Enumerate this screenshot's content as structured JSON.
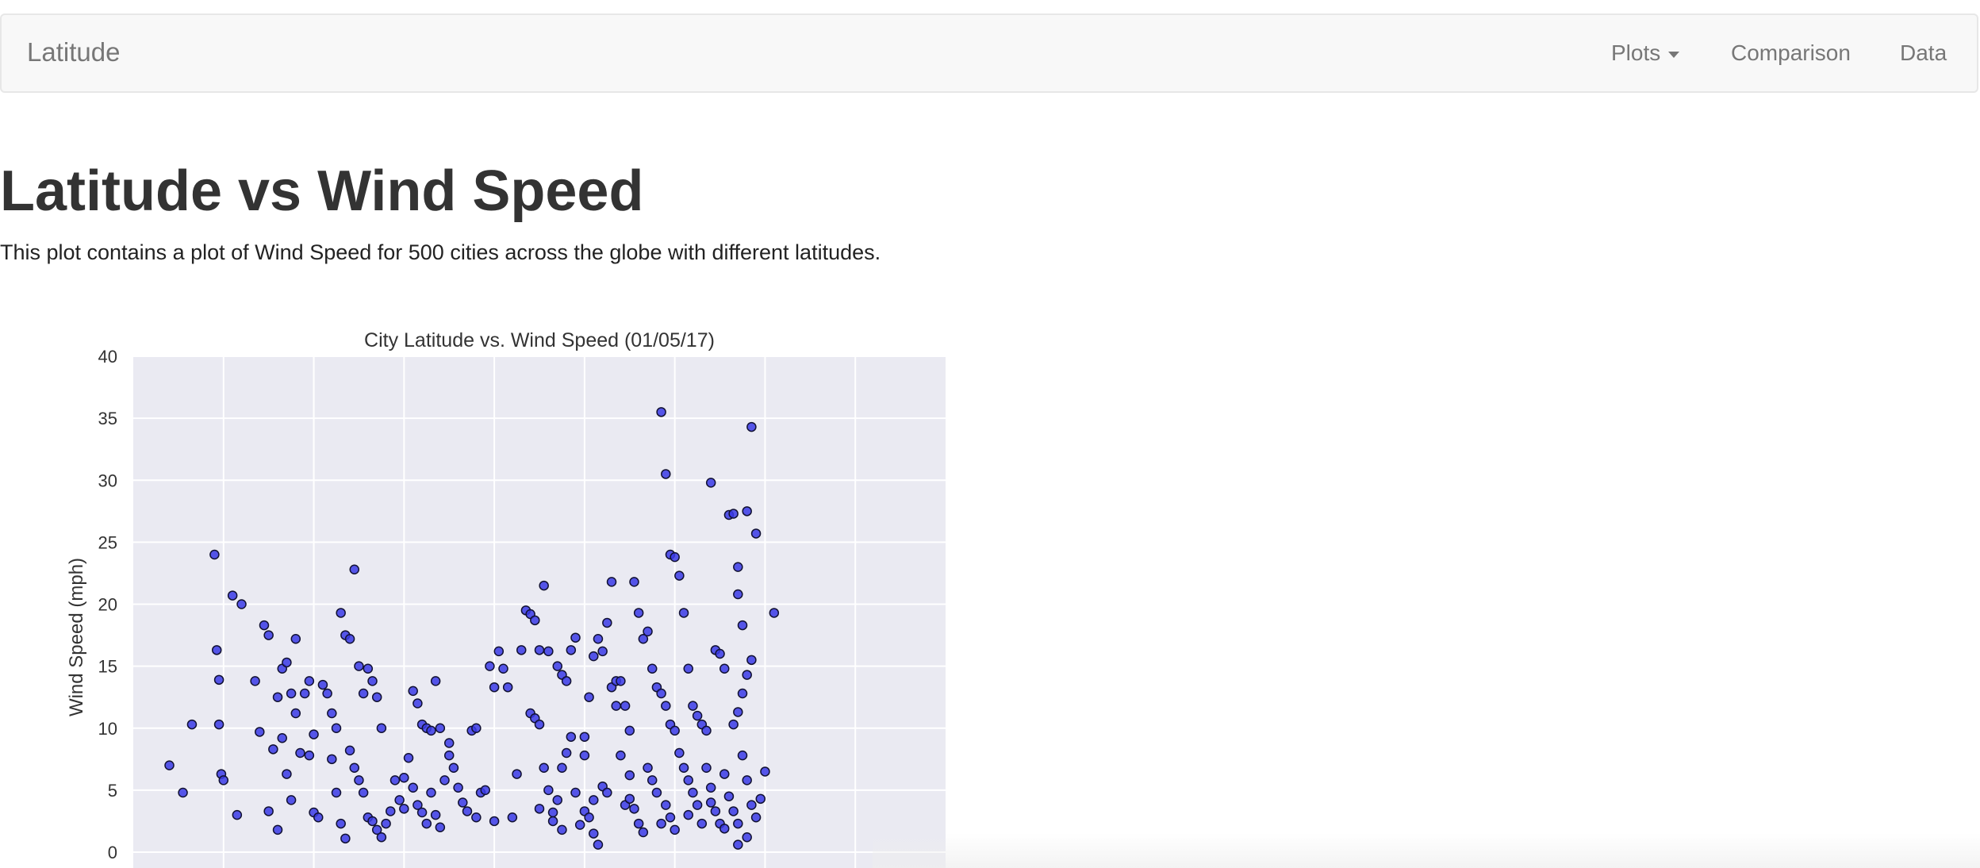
{
  "navbar": {
    "brand": "Latitude",
    "items": [
      {
        "label": "Plots",
        "dropdown": true
      },
      {
        "label": "Comparison"
      },
      {
        "label": "Data"
      }
    ]
  },
  "page": {
    "title": "Latitude vs Wind Speed",
    "description": "This plot contains a plot of Wind Speed for 500 cities across the globe with different latitudes."
  },
  "colors": {
    "plot_background": "#eaeaf2",
    "gridline": "#ffffff",
    "marker_fill": "#3a3ae6",
    "marker_edge": "#111133",
    "navbar_bg": "#f8f8f8",
    "navbar_text": "#777777"
  },
  "chart_data": {
    "type": "scatter",
    "title": "City Latitude vs. Wind Speed (01/05/17)",
    "xlabel": "",
    "ylabel": "Wind Speed (mph)",
    "ylim": [
      0,
      40
    ],
    "yticks": [
      "0",
      "5",
      "10",
      "15",
      "20",
      "25",
      "30",
      "35",
      "40"
    ],
    "xlim": [
      -90,
      90
    ],
    "grid": true,
    "series": [
      {
        "points": [
          [
            -82,
            7
          ],
          [
            -79,
            4.8
          ],
          [
            -77,
            10.3
          ],
          [
            -72,
            24
          ],
          [
            -71.5,
            16.3
          ],
          [
            -71,
            10.3
          ],
          [
            -70.5,
            6.3
          ],
          [
            -70,
            5.8
          ],
          [
            -71,
            13.9
          ],
          [
            -68,
            20.7
          ],
          [
            -67,
            3
          ],
          [
            -66,
            20
          ],
          [
            -63,
            13.8
          ],
          [
            -62,
            9.7
          ],
          [
            -61,
            18.3
          ],
          [
            -60,
            17.5
          ],
          [
            -59,
            8.3
          ],
          [
            -58,
            12.5
          ],
          [
            -57,
            14.8
          ],
          [
            -56,
            15.3
          ],
          [
            -55,
            12.8
          ],
          [
            -54,
            17.2
          ],
          [
            -57,
            9.2
          ],
          [
            -56,
            6.3
          ],
          [
            -55,
            4.2
          ],
          [
            -54,
            11.2
          ],
          [
            -53,
            8
          ],
          [
            -52,
            12.8
          ],
          [
            -51,
            13.8
          ],
          [
            -51,
            7.8
          ],
          [
            -50,
            3.2
          ],
          [
            -49,
            2.8
          ],
          [
            -48,
            13.5
          ],
          [
            -47,
            12.8
          ],
          [
            -46,
            11.2
          ],
          [
            -45,
            10
          ],
          [
            -46,
            7.5
          ],
          [
            -45,
            4.8
          ],
          [
            -44,
            19.3
          ],
          [
            -43,
            17.5
          ],
          [
            -42,
            17.2
          ],
          [
            -41,
            22.8
          ],
          [
            -40,
            15
          ],
          [
            -39,
            12.8
          ],
          [
            -38,
            14.8
          ],
          [
            -37,
            13.8
          ],
          [
            -36,
            12.5
          ],
          [
            -35,
            10
          ],
          [
            -42,
            8.2
          ],
          [
            -41,
            6.8
          ],
          [
            -40,
            5.8
          ],
          [
            -39,
            4.8
          ],
          [
            -44,
            2.3
          ],
          [
            -43,
            1.1
          ],
          [
            -38,
            2.8
          ],
          [
            -37,
            2.5
          ],
          [
            -36,
            1.8
          ],
          [
            -35,
            1.2
          ],
          [
            -34,
            2.3
          ],
          [
            -33,
            3.3
          ],
          [
            -32,
            5.8
          ],
          [
            -31,
            4.2
          ],
          [
            -30,
            6
          ],
          [
            -29,
            7.6
          ],
          [
            -28,
            13
          ],
          [
            -27,
            12
          ],
          [
            -26,
            10.3
          ],
          [
            -25,
            10
          ],
          [
            -24,
            9.8
          ],
          [
            -23,
            13.8
          ],
          [
            -22,
            10
          ],
          [
            -28,
            5.2
          ],
          [
            -27,
            3.8
          ],
          [
            -26,
            3.2
          ],
          [
            -25,
            2.3
          ],
          [
            -24,
            4.8
          ],
          [
            -23,
            3
          ],
          [
            -22,
            2
          ],
          [
            -21,
            5.8
          ],
          [
            -20,
            7.8
          ],
          [
            -19,
            6.8
          ],
          [
            -18,
            5.2
          ],
          [
            -17,
            4
          ],
          [
            -16,
            3.3
          ],
          [
            -15,
            9.8
          ],
          [
            -14,
            10
          ],
          [
            -13,
            4.8
          ],
          [
            -12,
            5
          ],
          [
            -11,
            15
          ],
          [
            -10,
            13.3
          ],
          [
            -9,
            16.2
          ],
          [
            -8,
            14.8
          ],
          [
            -7,
            13.3
          ],
          [
            -6,
            2.8
          ],
          [
            -5,
            6.3
          ],
          [
            -4,
            16.3
          ],
          [
            -3,
            19.5
          ],
          [
            -2,
            19.2
          ],
          [
            -1,
            18.7
          ],
          [
            0,
            16.3
          ],
          [
            1,
            21.5
          ],
          [
            2,
            16.2
          ],
          [
            -2,
            11.2
          ],
          [
            -1,
            10.8
          ],
          [
            0,
            10.3
          ],
          [
            1,
            6.8
          ],
          [
            2,
            5
          ],
          [
            3,
            3.2
          ],
          [
            4,
            15
          ],
          [
            5,
            14.3
          ],
          [
            6,
            13.8
          ],
          [
            7,
            16.3
          ],
          [
            8,
            17.3
          ],
          [
            3,
            2.5
          ],
          [
            4,
            4.2
          ],
          [
            5,
            6.8
          ],
          [
            6,
            8
          ],
          [
            7,
            9.3
          ],
          [
            8,
            4.8
          ],
          [
            9,
            2.2
          ],
          [
            10,
            7.8
          ],
          [
            11,
            12.5
          ],
          [
            12,
            15.8
          ],
          [
            13,
            17.2
          ],
          [
            14,
            16.2
          ],
          [
            15,
            18.5
          ],
          [
            16,
            13.3
          ],
          [
            17,
            11.8
          ],
          [
            18,
            7.8
          ],
          [
            19,
            3.8
          ],
          [
            10,
            3.3
          ],
          [
            11,
            2.8
          ],
          [
            12,
            1.5
          ],
          [
            13,
            0.6
          ],
          [
            14,
            5.3
          ],
          [
            15,
            4.8
          ],
          [
            16,
            21.8
          ],
          [
            17,
            13.8
          ],
          [
            18,
            13.8
          ],
          [
            19,
            11.8
          ],
          [
            20,
            9.8
          ],
          [
            21,
            21.8
          ],
          [
            22,
            19.3
          ],
          [
            23,
            17.2
          ],
          [
            20,
            4.3
          ],
          [
            21,
            3.5
          ],
          [
            22,
            2.3
          ],
          [
            23,
            1.6
          ],
          [
            24,
            17.8
          ],
          [
            25,
            14.8
          ],
          [
            26,
            13.3
          ],
          [
            27,
            35.5
          ],
          [
            28,
            30.5
          ],
          [
            29,
            24
          ],
          [
            30,
            23.8
          ],
          [
            31,
            22.3
          ],
          [
            27,
            12.8
          ],
          [
            28,
            11.8
          ],
          [
            29,
            10.3
          ],
          [
            30,
            9.8
          ],
          [
            31,
            8
          ],
          [
            24,
            6.8
          ],
          [
            25,
            5.8
          ],
          [
            26,
            4.8
          ],
          [
            27,
            2.3
          ],
          [
            28,
            3.8
          ],
          [
            29,
            2.8
          ],
          [
            30,
            1.8
          ],
          [
            32,
            19.3
          ],
          [
            33,
            14.8
          ],
          [
            34,
            11.8
          ],
          [
            35,
            11
          ],
          [
            36,
            10.3
          ],
          [
            37,
            9.8
          ],
          [
            38,
            29.8
          ],
          [
            39,
            16.3
          ],
          [
            40,
            16
          ],
          [
            41,
            14.8
          ],
          [
            42,
            27.2
          ],
          [
            43,
            27.3
          ],
          [
            44,
            23
          ],
          [
            44,
            20.8
          ],
          [
            45,
            18.3
          ],
          [
            46,
            27.5
          ],
          [
            47,
            34.3
          ],
          [
            48,
            25.7
          ],
          [
            52,
            19.3
          ],
          [
            47,
            15.5
          ],
          [
            46,
            14.3
          ],
          [
            45,
            12.8
          ],
          [
            44,
            11.3
          ],
          [
            43,
            10.3
          ],
          [
            32,
            6.8
          ],
          [
            33,
            5.8
          ],
          [
            34,
            4.8
          ],
          [
            35,
            3.8
          ],
          [
            36,
            2.3
          ],
          [
            37,
            6.8
          ],
          [
            38,
            5.2
          ],
          [
            39,
            3.3
          ],
          [
            40,
            2.3
          ],
          [
            41,
            6.3
          ],
          [
            42,
            4.5
          ],
          [
            43,
            3.3
          ],
          [
            44,
            2.3
          ],
          [
            45,
            7.8
          ],
          [
            46,
            5.8
          ],
          [
            47,
            3.8
          ],
          [
            48,
            2.8
          ],
          [
            49,
            4.3
          ],
          [
            50,
            6.5
          ],
          [
            46,
            1.2
          ],
          [
            44,
            0.6
          ],
          [
            -50,
            9.5
          ],
          [
            -20,
            8.8
          ],
          [
            10,
            9.3
          ],
          [
            -60,
            3.3
          ],
          [
            -58,
            1.8
          ],
          [
            -30,
            3.5
          ],
          [
            -10,
            2.5
          ],
          [
            0,
            3.5
          ],
          [
            5,
            1.8
          ],
          [
            20,
            6.2
          ],
          [
            33,
            3
          ],
          [
            38,
            4
          ],
          [
            41,
            1.9
          ],
          [
            12,
            4.2
          ],
          [
            -14,
            2.8
          ]
        ]
      }
    ]
  }
}
